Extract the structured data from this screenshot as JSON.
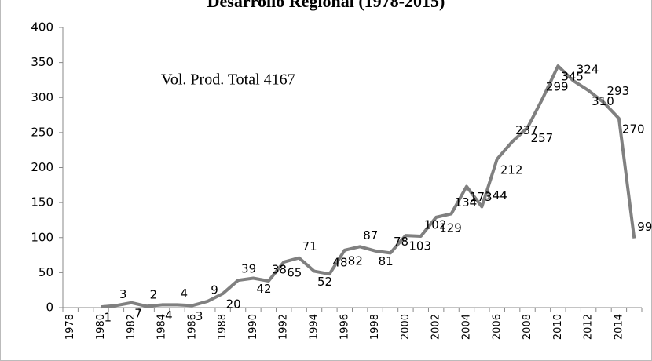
{
  "chart_data": {
    "type": "line",
    "title": "Desarrollo Regional (1978-2015)",
    "annotation": "Vol. Prod. Total  4167",
    "categories": [
      "1978",
      null,
      "1980",
      null,
      "1982",
      null,
      "1984",
      null,
      "1986",
      null,
      "1988",
      null,
      "1990",
      null,
      "1992",
      null,
      "1994",
      null,
      "1996",
      null,
      "1998",
      null,
      "2000",
      null,
      "2002",
      null,
      "2004",
      null,
      "2006",
      null,
      "2008",
      null,
      "2010",
      null,
      "2012",
      null,
      "2014",
      null
    ],
    "values": [
      null,
      null,
      1,
      3,
      7,
      2,
      4,
      4,
      3,
      9,
      20,
      39,
      42,
      38,
      65,
      71,
      52,
      48,
      82,
      87,
      81,
      78,
      103,
      102,
      129,
      134,
      173,
      144,
      212,
      237,
      257,
      299,
      345,
      324,
      310,
      293,
      270,
      99
    ],
    "color": "#808080",
    "ylim": [
      0,
      400
    ],
    "yticks": [
      0,
      50,
      100,
      150,
      200,
      250,
      300,
      350,
      400
    ],
    "grid": false
  }
}
